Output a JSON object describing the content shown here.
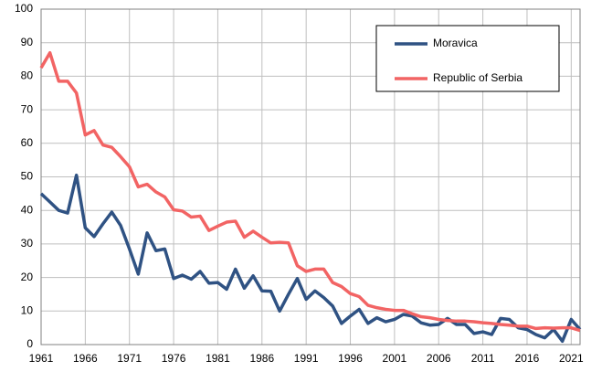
{
  "chart_data": {
    "type": "line",
    "x": [
      1961,
      1962,
      1963,
      1964,
      1965,
      1966,
      1967,
      1968,
      1969,
      1970,
      1971,
      1972,
      1973,
      1974,
      1975,
      1976,
      1977,
      1978,
      1979,
      1980,
      1981,
      1982,
      1983,
      1984,
      1985,
      1986,
      1987,
      1988,
      1989,
      1990,
      1991,
      1992,
      1993,
      1994,
      1995,
      1996,
      1997,
      1998,
      1999,
      2000,
      2001,
      2002,
      2003,
      2004,
      2005,
      2006,
      2007,
      2008,
      2009,
      2010,
      2011,
      2012,
      2013,
      2014,
      2015,
      2016,
      2017,
      2018,
      2019,
      2020,
      2021,
      2022
    ],
    "series": [
      {
        "name": "Moravica",
        "color": "#2f5283",
        "values": [
          45,
          42.5,
          40,
          39.2,
          50.5,
          34.8,
          32.2,
          36,
          39.5,
          35.5,
          28.5,
          21,
          33.3,
          28,
          28.5,
          19.7,
          20.7,
          19.5,
          21.8,
          18.3,
          18.5,
          16.5,
          22.5,
          16.8,
          20.5,
          16,
          15.9,
          10,
          15,
          19.7,
          13.5,
          16,
          14,
          11.5,
          6.3,
          8.5,
          10.5,
          6.3,
          8,
          6.8,
          7.5,
          9,
          8.5,
          6.5,
          5.8,
          6,
          7.8,
          6,
          6,
          3.3,
          3.8,
          3,
          7.8,
          7.5,
          5,
          4.5,
          3,
          2,
          4.5,
          1,
          7.5,
          4.5
        ]
      },
      {
        "name": "Republic of Serbia",
        "color": "#f26464",
        "values": [
          82.5,
          87,
          78.5,
          78.5,
          75,
          62.5,
          63.8,
          59.5,
          58.8,
          56,
          53,
          47,
          47.8,
          45.5,
          44,
          40.2,
          39.8,
          38,
          38.3,
          34,
          35.3,
          36.5,
          36.8,
          32,
          33.8,
          32,
          30.3,
          30.5,
          30.3,
          23.5,
          21.8,
          22.5,
          22.5,
          18.5,
          17.3,
          15.2,
          14.3,
          11.7,
          11,
          10.5,
          10.2,
          10.2,
          9.2,
          8.3,
          8,
          7.5,
          7.2,
          7,
          7,
          6.8,
          6.5,
          6.3,
          6,
          5.8,
          5.5,
          5.5,
          4.8,
          5,
          4.9,
          5,
          5,
          4.2
        ]
      }
    ],
    "xlim": [
      1961,
      2022
    ],
    "xticks": [
      1961,
      1966,
      1971,
      1976,
      1981,
      1986,
      1991,
      1996,
      2001,
      2006,
      2011,
      2016,
      2021
    ],
    "ylim": [
      0,
      100
    ],
    "yticks": [
      0,
      10,
      20,
      30,
      40,
      50,
      60,
      70,
      80,
      90,
      100
    ],
    "grid": true,
    "legend": "upper right"
  }
}
